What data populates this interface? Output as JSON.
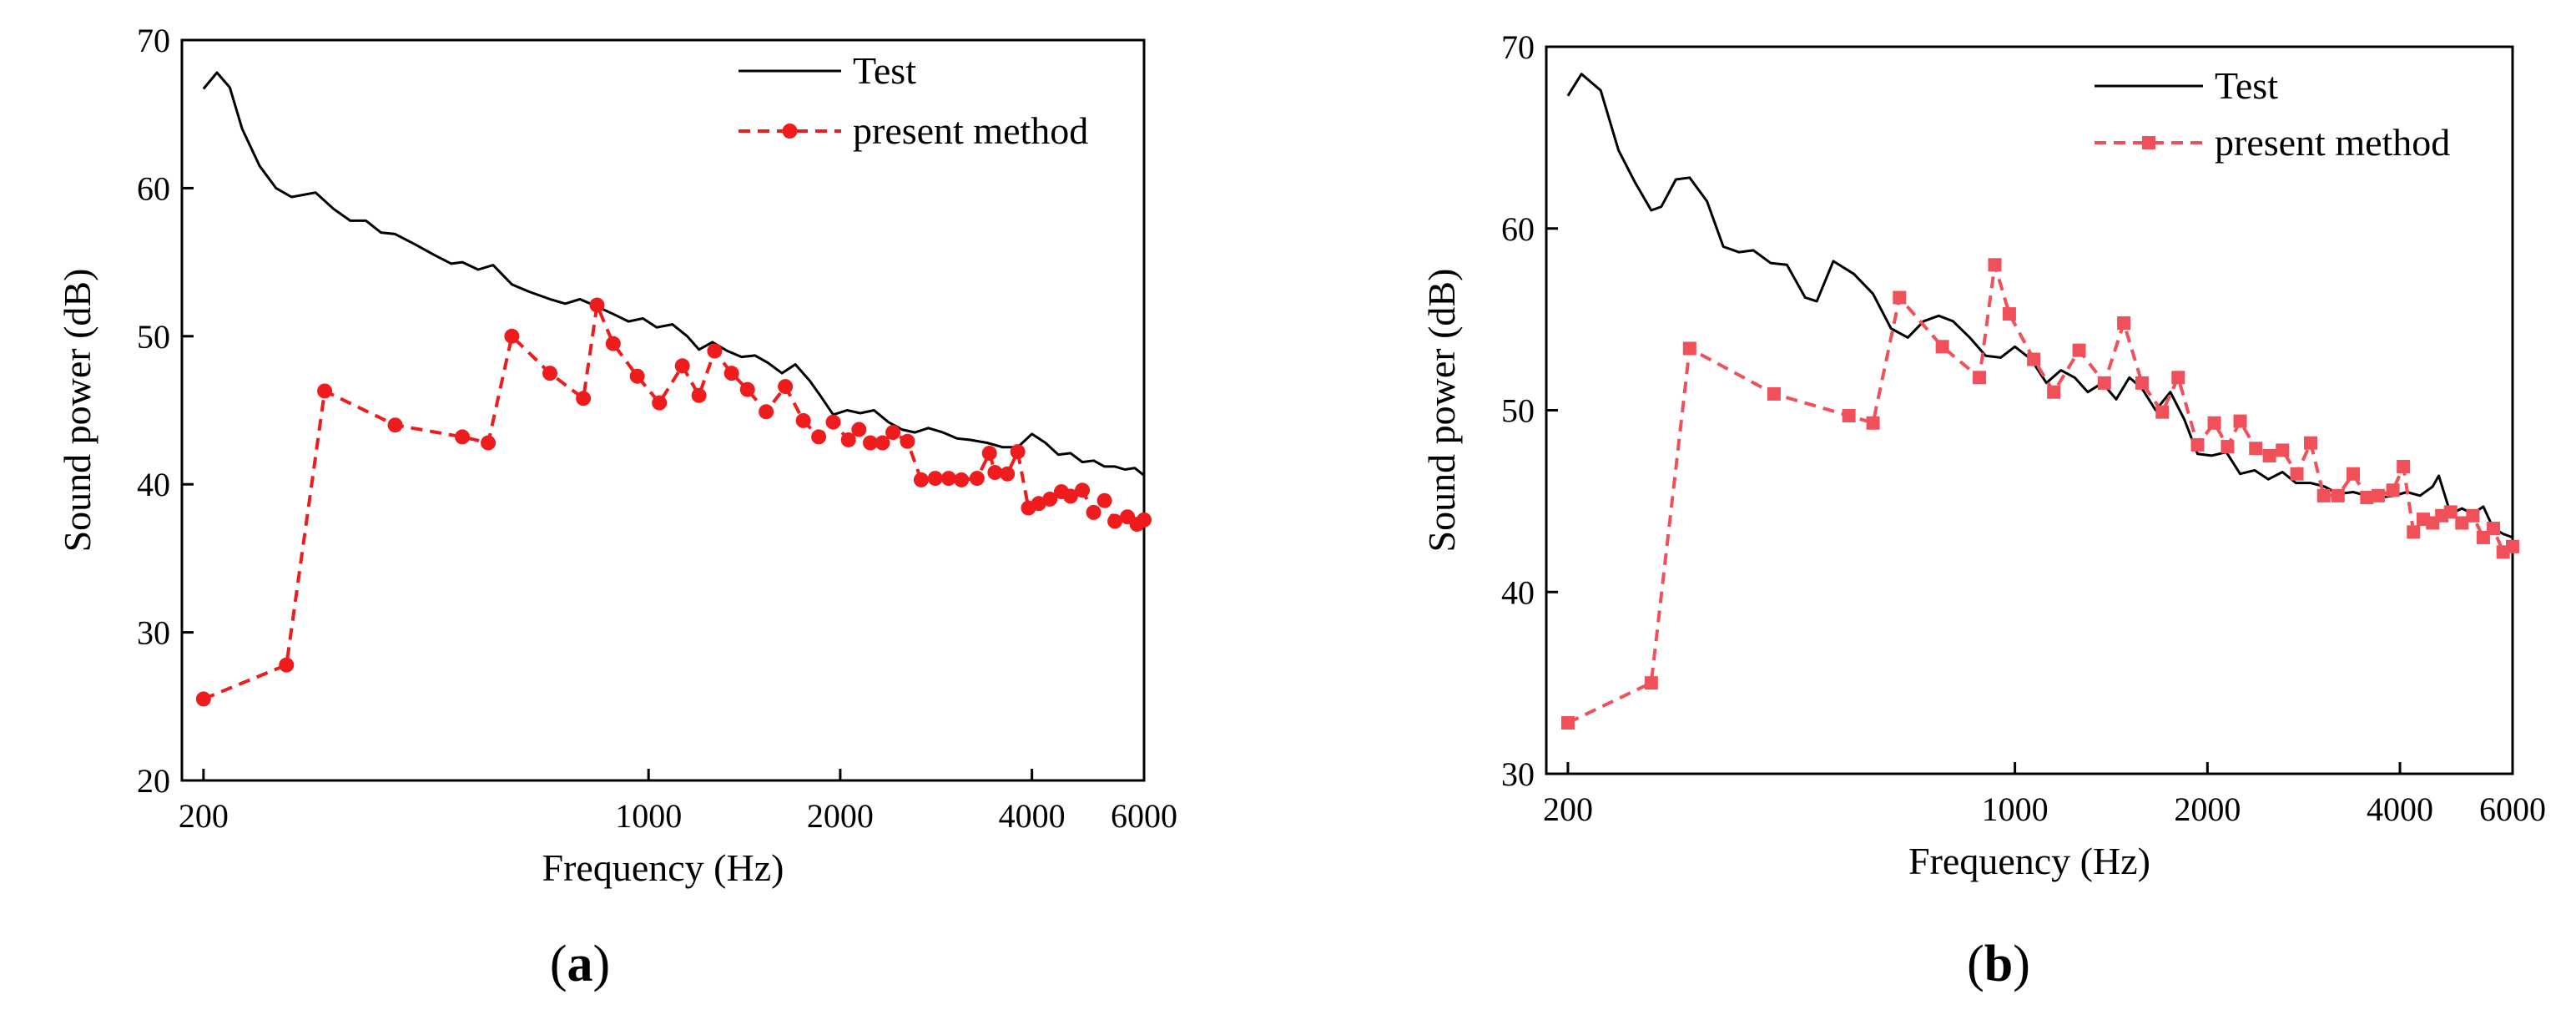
{
  "chart_data": [
    {
      "type": "line",
      "panel_label": "a",
      "xlabel": "Frequency (Hz)",
      "ylabel": "Sound power (dB)",
      "xscale": "log",
      "xlim": [
        185,
        6000
      ],
      "ylim": [
        20,
        70
      ],
      "x_ticks": [
        200,
        1000,
        2000,
        4000,
        6000
      ],
      "y_ticks": [
        20,
        30,
        40,
        50,
        60,
        70
      ],
      "legend_position": "top-right",
      "series": [
        {
          "name": "Test",
          "color": "#000000",
          "style": "solid",
          "marker": "none",
          "points": [
            [
              200,
              66.7
            ],
            [
              210,
              67.8
            ],
            [
              220,
              66.8
            ],
            [
              230,
              64
            ],
            [
              245,
              61.5
            ],
            [
              260,
              60
            ],
            [
              275,
              59.4
            ],
            [
              300,
              59.7
            ],
            [
              320,
              58.6
            ],
            [
              340,
              57.8
            ],
            [
              360,
              57.8
            ],
            [
              380,
              57
            ],
            [
              400,
              56.9
            ],
            [
              430,
              56.2
            ],
            [
              460,
              55.5
            ],
            [
              490,
              54.9
            ],
            [
              510,
              55
            ],
            [
              540,
              54.5
            ],
            [
              570,
              54.8
            ],
            [
              610,
              53.5
            ],
            [
              650,
              53
            ],
            [
              700,
              52.5
            ],
            [
              740,
              52.2
            ],
            [
              780,
              52.5
            ],
            [
              830,
              52
            ],
            [
              880,
              51.5
            ],
            [
              930,
              51
            ],
            [
              980,
              51.2
            ],
            [
              1030,
              50.6
            ],
            [
              1090,
              50.8
            ],
            [
              1150,
              50
            ],
            [
              1200,
              49.1
            ],
            [
              1260,
              49.6
            ],
            [
              1330,
              49
            ],
            [
              1400,
              48.6
            ],
            [
              1470,
              48.7
            ],
            [
              1540,
              48.2
            ],
            [
              1620,
              47.5
            ],
            [
              1700,
              48.1
            ],
            [
              1790,
              47
            ],
            [
              1860,
              46
            ],
            [
              1950,
              44.7
            ],
            [
              2050,
              45
            ],
            [
              2150,
              44.8
            ],
            [
              2260,
              45
            ],
            [
              2380,
              44.2
            ],
            [
              2500,
              43.7
            ],
            [
              2620,
              43.5
            ],
            [
              2750,
              43.8
            ],
            [
              2900,
              43.5
            ],
            [
              3050,
              43.1
            ],
            [
              3200,
              43
            ],
            [
              3400,
              42.8
            ],
            [
              3600,
              42.5
            ],
            [
              3800,
              42.5
            ],
            [
              4000,
              43.4
            ],
            [
              4200,
              42.8
            ],
            [
              4400,
              42
            ],
            [
              4600,
              42.1
            ],
            [
              4800,
              41.5
            ],
            [
              5000,
              41.6
            ],
            [
              5200,
              41.2
            ],
            [
              5400,
              41.2
            ],
            [
              5600,
              41
            ],
            [
              5800,
              41.1
            ],
            [
              6000,
              40.6
            ]
          ]
        },
        {
          "name": "present method",
          "color": "#ee1c1c",
          "style": "dashed",
          "marker": "circle",
          "points": [
            [
              200,
              25.5
            ],
            [
              270,
              27.8
            ],
            [
              310,
              46.3
            ],
            [
              400,
              44
            ],
            [
              510,
              43.2
            ],
            [
              560,
              42.8
            ],
            [
              610,
              50
            ],
            [
              700,
              47.5
            ],
            [
              790,
              45.8
            ],
            [
              830,
              52.1
            ],
            [
              880,
              49.5
            ],
            [
              960,
              47.3
            ],
            [
              1040,
              45.5
            ],
            [
              1130,
              48
            ],
            [
              1200,
              46
            ],
            [
              1270,
              49
            ],
            [
              1350,
              47.5
            ],
            [
              1430,
              46.4
            ],
            [
              1530,
              44.9
            ],
            [
              1640,
              46.6
            ],
            [
              1750,
              44.3
            ],
            [
              1850,
              43.2
            ],
            [
              1950,
              44.2
            ],
            [
              2060,
              43
            ],
            [
              2140,
              43.7
            ],
            [
              2230,
              42.8
            ],
            [
              2330,
              42.8
            ],
            [
              2420,
              43.5
            ],
            [
              2550,
              42.9
            ],
            [
              2680,
              40.3
            ],
            [
              2820,
              40.4
            ],
            [
              2960,
              40.4
            ],
            [
              3100,
              40.3
            ],
            [
              3280,
              40.4
            ],
            [
              3430,
              42.1
            ],
            [
              3500,
              40.8
            ],
            [
              3660,
              40.7
            ],
            [
              3800,
              42.2
            ],
            [
              3950,
              38.4
            ],
            [
              4100,
              38.7
            ],
            [
              4270,
              39
            ],
            [
              4450,
              39.5
            ],
            [
              4600,
              39.2
            ],
            [
              4800,
              39.6
            ],
            [
              5000,
              38.1
            ],
            [
              5200,
              38.9
            ],
            [
              5400,
              37.5
            ],
            [
              5650,
              37.8
            ],
            [
              5850,
              37.3
            ],
            [
              6000,
              37.6
            ]
          ]
        }
      ]
    },
    {
      "type": "line",
      "panel_label": "b",
      "xlabel": "Frequency (Hz)",
      "ylabel": "Sound power (dB)",
      "xscale": "log",
      "xlim": [
        185,
        6000
      ],
      "ylim": [
        30,
        70
      ],
      "x_ticks": [
        200,
        1000,
        2000,
        4000,
        6000
      ],
      "y_ticks": [
        30,
        40,
        50,
        60,
        70
      ],
      "legend_position": "top-right",
      "series": [
        {
          "name": "Test",
          "color": "#000000",
          "style": "solid",
          "marker": "none",
          "points": [
            [
              200,
              67.3
            ],
            [
              210,
              68.5
            ],
            [
              225,
              67.6
            ],
            [
              240,
              64.3
            ],
            [
              255,
              62.5
            ],
            [
              270,
              61
            ],
            [
              280,
              61.2
            ],
            [
              295,
              62.7
            ],
            [
              310,
              62.8
            ],
            [
              330,
              61.5
            ],
            [
              350,
              59
            ],
            [
              370,
              58.7
            ],
            [
              390,
              58.8
            ],
            [
              415,
              58.1
            ],
            [
              440,
              58
            ],
            [
              470,
              56.2
            ],
            [
              490,
              56
            ],
            [
              520,
              58.2
            ],
            [
              560,
              57.5
            ],
            [
              600,
              56.4
            ],
            [
              640,
              54.5
            ],
            [
              680,
              54
            ],
            [
              720,
              54.9
            ],
            [
              760,
              55.2
            ],
            [
              800,
              54.9
            ],
            [
              850,
              54
            ],
            [
              900,
              53
            ],
            [
              950,
              52.9
            ],
            [
              1000,
              53.5
            ],
            [
              1060,
              52.8
            ],
            [
              1120,
              51.5
            ],
            [
              1180,
              52.2
            ],
            [
              1240,
              51.8
            ],
            [
              1300,
              51
            ],
            [
              1370,
              51.5
            ],
            [
              1440,
              50.6
            ],
            [
              1510,
              51.8
            ],
            [
              1580,
              51.2
            ],
            [
              1660,
              50
            ],
            [
              1750,
              51
            ],
            [
              1840,
              49.5
            ],
            [
              1930,
              47.6
            ],
            [
              2030,
              47.5
            ],
            [
              2140,
              47.7
            ],
            [
              2250,
              46.5
            ],
            [
              2370,
              46.7
            ],
            [
              2490,
              46.2
            ],
            [
              2620,
              46.6
            ],
            [
              2750,
              46
            ],
            [
              2900,
              46
            ],
            [
              3050,
              45.8
            ],
            [
              3200,
              45.4
            ],
            [
              3380,
              45.5
            ],
            [
              3550,
              45.3
            ],
            [
              3730,
              45.2
            ],
            [
              3920,
              45.3
            ],
            [
              4100,
              45.5
            ],
            [
              4300,
              45.3
            ],
            [
              4500,
              45.8
            ],
            [
              4600,
              46.4
            ],
            [
              4800,
              44.3
            ],
            [
              5000,
              44.6
            ],
            [
              5200,
              44.3
            ],
            [
              5400,
              44.7
            ],
            [
              5600,
              43.5
            ],
            [
              5800,
              43.2
            ],
            [
              6000,
              43
            ]
          ]
        },
        {
          "name": "present method",
          "color": "#f0505a",
          "style": "dashed",
          "marker": "square",
          "points": [
            [
              200,
              32.8
            ],
            [
              270,
              35
            ],
            [
              310,
              53.4
            ],
            [
              420,
              50.9
            ],
            [
              550,
              49.7
            ],
            [
              600,
              49.3
            ],
            [
              660,
              56.2
            ],
            [
              770,
              53.5
            ],
            [
              880,
              51.8
            ],
            [
              930,
              58
            ],
            [
              980,
              55.3
            ],
            [
              1070,
              52.8
            ],
            [
              1150,
              51
            ],
            [
              1260,
              53.3
            ],
            [
              1380,
              51.5
            ],
            [
              1480,
              54.8
            ],
            [
              1580,
              51.5
            ],
            [
              1700,
              49.9
            ],
            [
              1800,
              51.8
            ],
            [
              1930,
              48.1
            ],
            [
              2050,
              49.3
            ],
            [
              2150,
              48
            ],
            [
              2250,
              49.4
            ],
            [
              2380,
              47.9
            ],
            [
              2500,
              47.5
            ],
            [
              2620,
              47.8
            ],
            [
              2760,
              46.5
            ],
            [
              2900,
              48.2
            ],
            [
              3040,
              45.3
            ],
            [
              3200,
              45.3
            ],
            [
              3380,
              46.5
            ],
            [
              3550,
              45.2
            ],
            [
              3700,
              45.3
            ],
            [
              3900,
              45.6
            ],
            [
              4050,
              46.9
            ],
            [
              4200,
              43.3
            ],
            [
              4350,
              44
            ],
            [
              4500,
              43.8
            ],
            [
              4650,
              44.2
            ],
            [
              4800,
              44.4
            ],
            [
              5000,
              43.8
            ],
            [
              5200,
              44.2
            ],
            [
              5400,
              43
            ],
            [
              5600,
              43.5
            ],
            [
              5800,
              42.2
            ],
            [
              6000,
              42.5
            ]
          ]
        }
      ]
    }
  ]
}
